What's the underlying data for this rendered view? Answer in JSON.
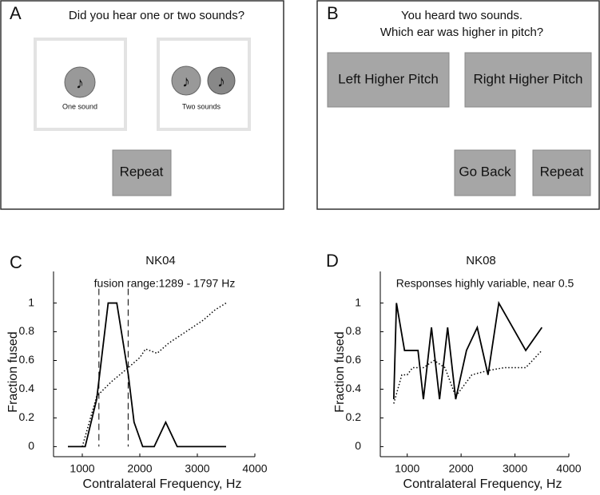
{
  "panel_a": {
    "label": "A",
    "prompt": "Did you hear one or two sounds?",
    "options": [
      "One sound",
      "Two sounds"
    ],
    "button": "Repeat"
  },
  "panel_b": {
    "label": "B",
    "prompt": [
      "You heard two sounds.",
      "Which ear was higher in pitch?"
    ],
    "buttons": [
      "Left Higher Pitch",
      "Right Higher Pitch",
      "Go Back",
      "Repeat"
    ]
  },
  "chart_data": [
    {
      "type": "line",
      "panel": "C",
      "title": "NK04",
      "annotation": "fusion range:1289 - 1797 Hz",
      "x_label": "Contralateral Frequency, Hz",
      "y_label": "Fraction fused",
      "xlim": [
        500,
        4000
      ],
      "xticks": [
        1000,
        2000,
        3000,
        4000
      ],
      "ylim": [
        -0.07,
        1.22
      ],
      "yticks": [
        0,
        0.2,
        0.4,
        0.6,
        0.8,
        1
      ],
      "vlines": [
        1289,
        1797
      ],
      "series": [
        {
          "style": "solid",
          "color": "#000000",
          "x": [
            750,
            1050,
            1250,
            1450,
            1600,
            1800,
            1900,
            2050,
            2250,
            2450,
            2650,
            3000,
            3500
          ],
          "values": [
            0,
            0,
            0.33,
            1,
            1,
            0.5,
            0.17,
            0,
            0,
            0.17,
            0,
            0,
            0
          ]
        },
        {
          "style": "dotted",
          "color": "#000000",
          "x": [
            1000,
            1250,
            1500,
            1800,
            2000,
            2100,
            2300,
            2500,
            2800,
            3100,
            3300,
            3500
          ],
          "values": [
            0,
            0.35,
            0.45,
            0.55,
            0.62,
            0.68,
            0.65,
            0.72,
            0.8,
            0.88,
            0.95,
            1
          ]
        }
      ]
    },
    {
      "type": "line",
      "panel": "D",
      "title": "NK08",
      "annotation": "Responses highly variable, near 0.5",
      "x_label": "Contralateral Frequency, Hz",
      "y_label": "Fraction fused",
      "xlim": [
        500,
        4000
      ],
      "xticks": [
        1000,
        2000,
        3000,
        4000
      ],
      "ylim": [
        -0.07,
        1.22
      ],
      "yticks": [
        0,
        0.2,
        0.4,
        0.6,
        0.8,
        1
      ],
      "series": [
        {
          "style": "solid",
          "color": "#000000",
          "x": [
            750,
            800,
            950,
            1200,
            1300,
            1450,
            1600,
            1750,
            1900,
            2100,
            2300,
            2500,
            2700,
            3200,
            3500
          ],
          "values": [
            0.33,
            1,
            0.67,
            0.67,
            0.33,
            0.83,
            0.33,
            0.83,
            0.33,
            0.67,
            0.83,
            0.5,
            1,
            0.67,
            0.83
          ]
        },
        {
          "style": "dotted",
          "color": "#000000",
          "x": [
            750,
            900,
            1000,
            1100,
            1300,
            1500,
            1700,
            1900,
            2200,
            2500,
            2800,
            3200,
            3500
          ],
          "values": [
            0.3,
            0.5,
            0.5,
            0.55,
            0.55,
            0.6,
            0.55,
            0.35,
            0.5,
            0.53,
            0.55,
            0.55,
            0.67
          ]
        }
      ]
    }
  ]
}
